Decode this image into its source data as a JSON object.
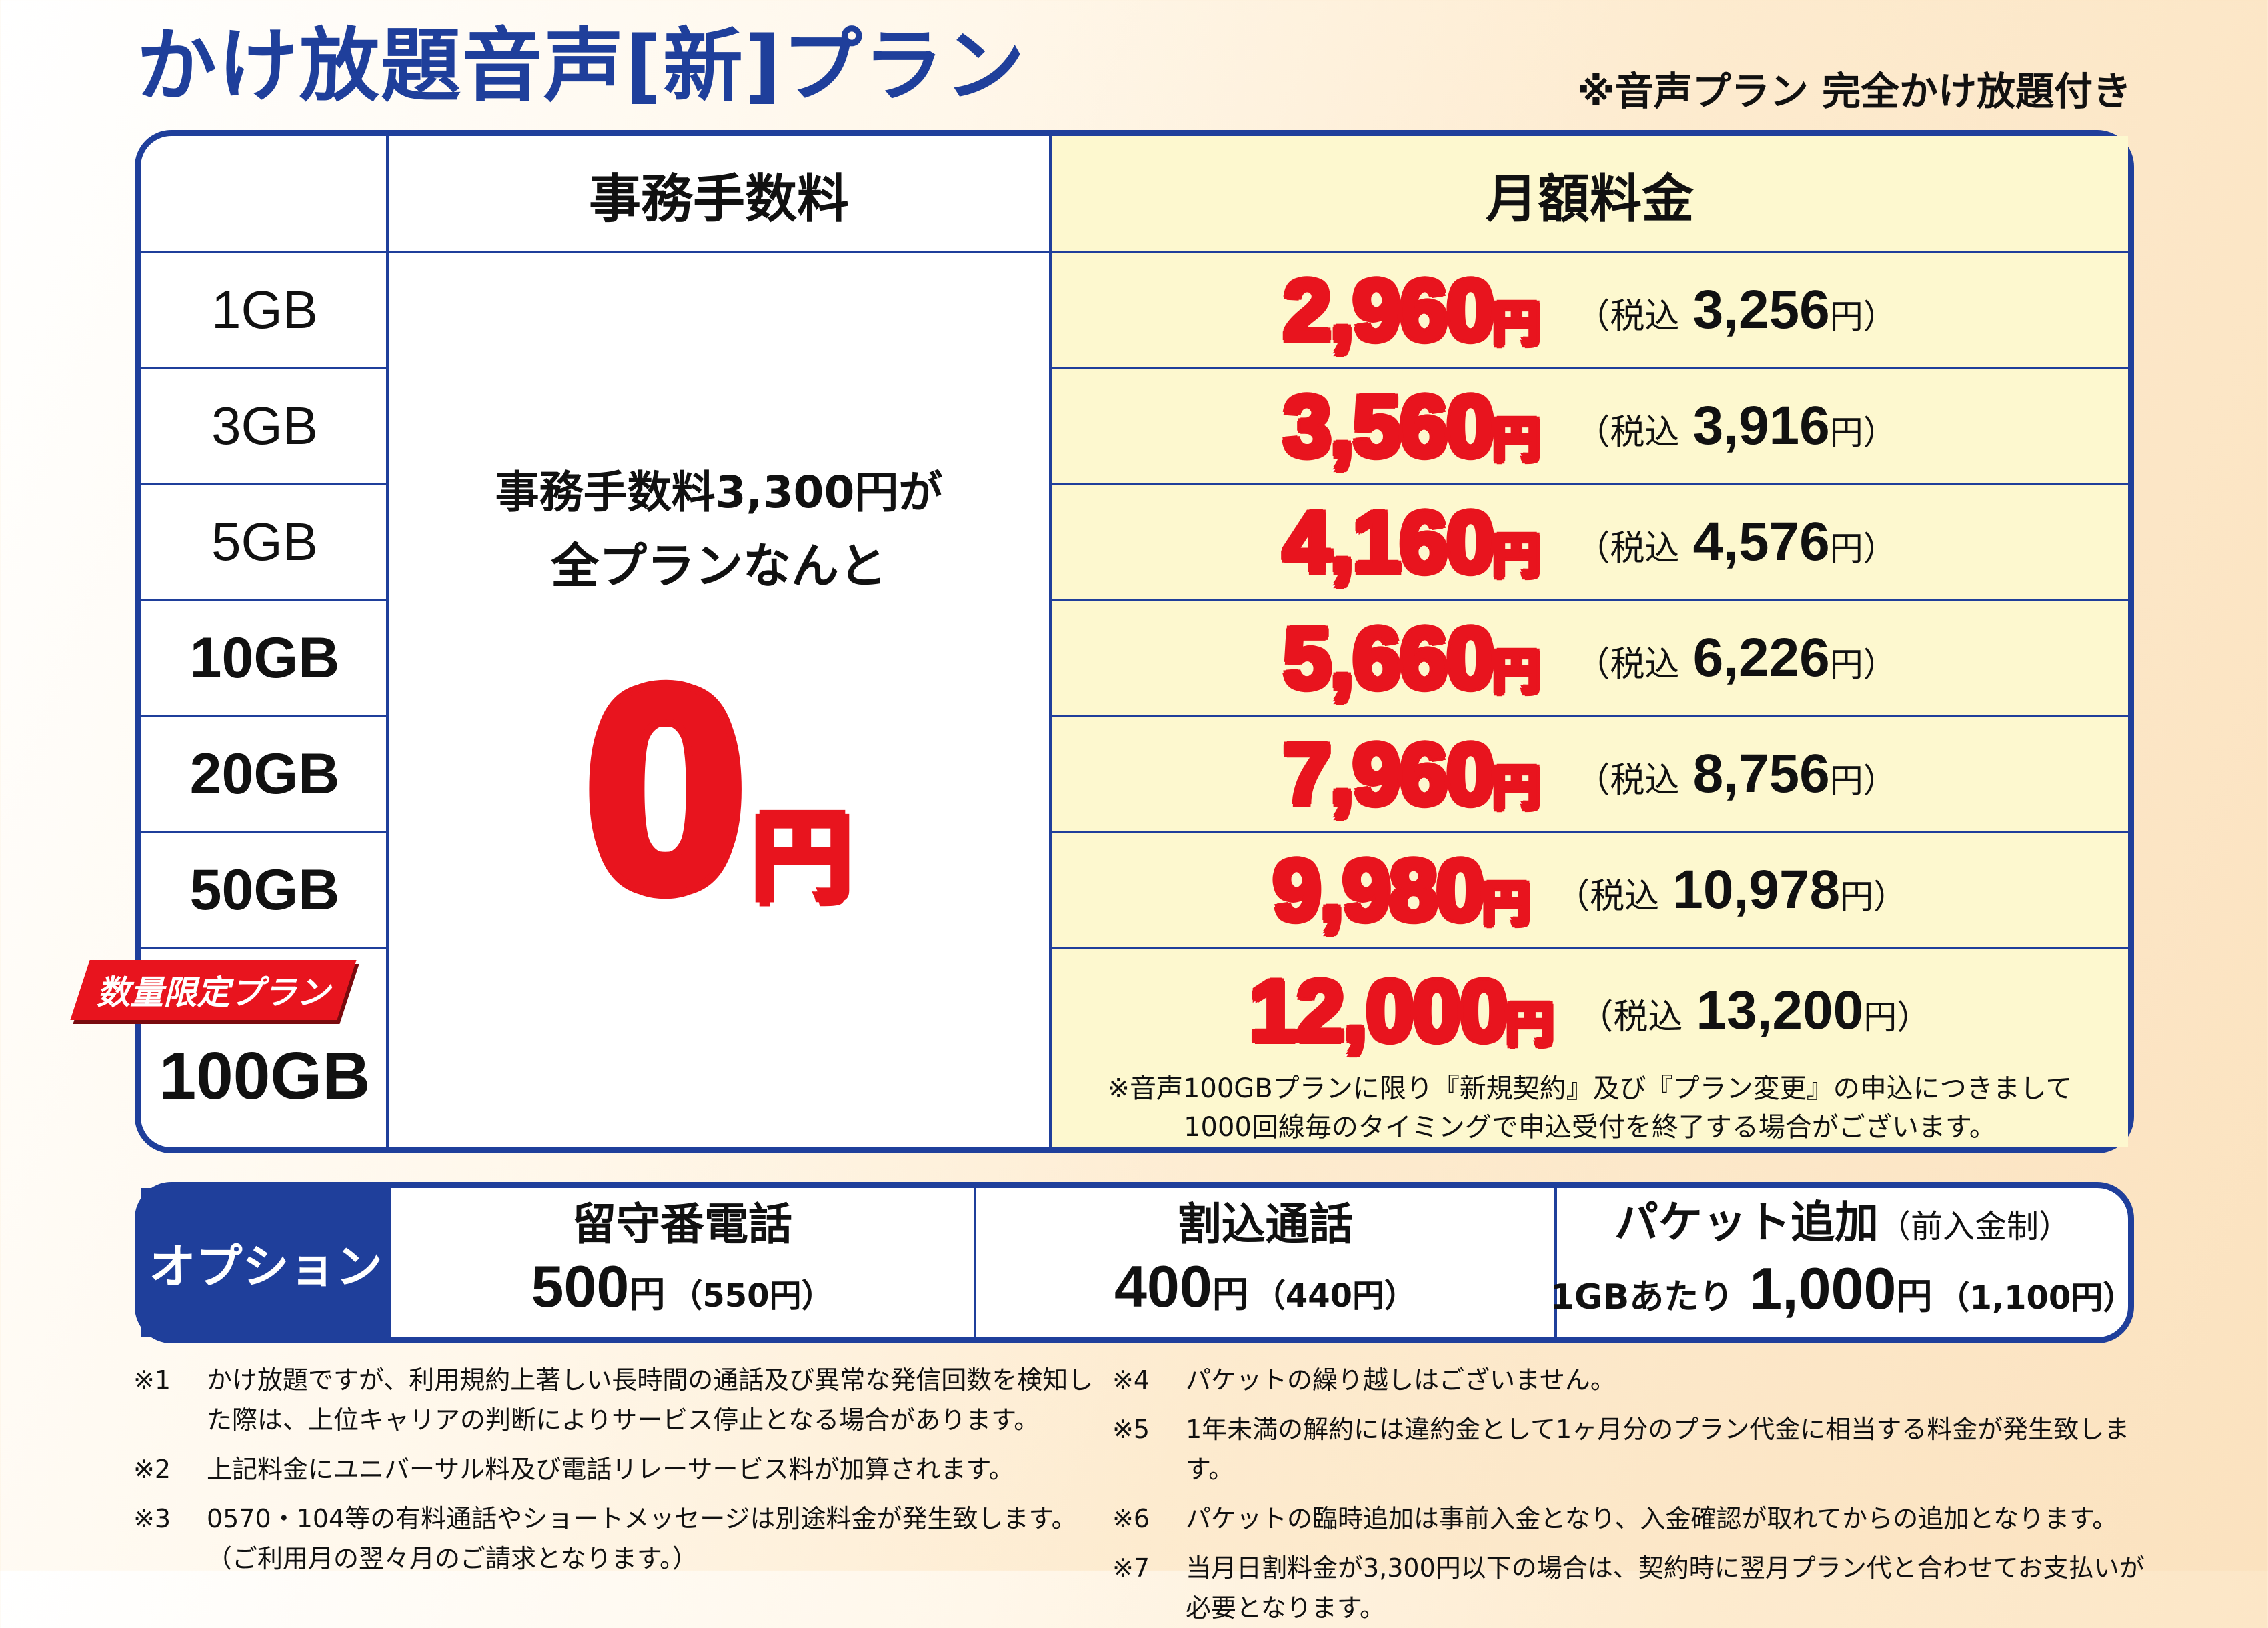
{
  "header": {
    "title": "かけ放題音声[新]プラン",
    "subtitle": "※音声プラン 完全かけ放題付き"
  },
  "table": {
    "col_fee": "事務手数料",
    "col_monthly": "月額料金",
    "plans": [
      {
        "name": "1GB",
        "price": "2,960",
        "tax_label": "（税込",
        "tax_price": "3,256",
        "yen": "円",
        "yen_close": "円）"
      },
      {
        "name": "3GB",
        "price": "3,560",
        "tax_label": "（税込",
        "tax_price": "3,916",
        "yen": "円",
        "yen_close": "円）"
      },
      {
        "name": "5GB",
        "price": "4,160",
        "tax_label": "（税込",
        "tax_price": "4,576",
        "yen": "円",
        "yen_close": "円）"
      },
      {
        "name": "10GB",
        "price": "5,660",
        "tax_label": "（税込",
        "tax_price": "6,226",
        "yen": "円",
        "yen_close": "円）"
      },
      {
        "name": "20GB",
        "price": "7,960",
        "tax_label": "（税込",
        "tax_price": "8,756",
        "yen": "円",
        "yen_close": "円）"
      },
      {
        "name": "50GB",
        "price": "9,980",
        "tax_label": "（税込",
        "tax_price": "10,978",
        "yen": "円",
        "yen_close": "円）"
      },
      {
        "name": "100GB",
        "price": "12,000",
        "tax_label": "（税込",
        "tax_price": "13,200",
        "yen": "円",
        "yen_close": "円）"
      }
    ],
    "fee_line1": "事務手数料3,300円が",
    "fee_line2": "全プランなんと",
    "fee_zero": "0",
    "fee_yen": "円",
    "limited_badge": "数量限定プラン",
    "note_100gb_line1": "※音声100GBプランに限り『新規契約』及び『プラン変更』の申込につきまして",
    "note_100gb_line2": "1000回線毎のタイミングで申込受付を終了する場合がございます。"
  },
  "options": {
    "label": "オプション",
    "items": [
      {
        "name": "留守番電話",
        "name_small": "",
        "pre": "",
        "price": "500",
        "unit": "円",
        "paren": "（550円）"
      },
      {
        "name": "割込通話",
        "name_small": "",
        "pre": "",
        "price": "400",
        "unit": "円",
        "paren": "（440円）"
      },
      {
        "name": "パケット追加",
        "name_small": "（前入金制）",
        "pre": "1GBあたり",
        "price": "1,000",
        "unit": "円",
        "paren": "（1,100円）"
      }
    ]
  },
  "notes_left": [
    {
      "mark": "※1",
      "text": "かけ放題ですが、利用規約上著しい長時間の通話及び異常な発信回数を検知した際は、上位キャリアの判断によりサービス停止となる場合があります。"
    },
    {
      "mark": "※2",
      "text": "上記料金にユニバーサル料及び電話リレーサービス料が加算されます。"
    },
    {
      "mark": "※3",
      "text": "0570・104等の有料通話やショートメッセージは別途料金が発生致します。（ご利用月の翌々月のご請求となります。）"
    }
  ],
  "notes_right": [
    {
      "mark": "※4",
      "text": "パケットの繰り越しはございません。"
    },
    {
      "mark": "※5",
      "text": "1年未満の解約には違約金として1ヶ月分のプラン代金に相当する料金が発生致します。"
    },
    {
      "mark": "※6",
      "text": "パケットの臨時追加は事前入金となり、入金確認が取れてからの追加となります。"
    },
    {
      "mark": "※7",
      "text": "当月日割料金が3,300円以下の場合は、契約時に翌月プラン代と合わせてお支払いが必要となります。"
    }
  ],
  "colors": {
    "brand_blue": "#1f3f9b",
    "price_red": "#e8141e",
    "monthly_bg": "#fdf8cf"
  }
}
